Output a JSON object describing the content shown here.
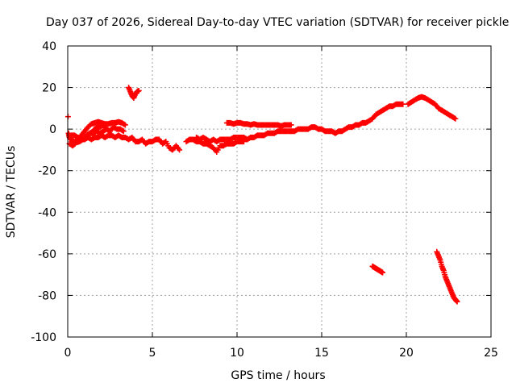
{
  "chart_data": {
    "type": "scatter",
    "title": "Day 037 of 2026, Sidereal Day-to-day VTEC variation (SDTVAR) for receiver pickle",
    "xlabel": "GPS time / hours",
    "ylabel": "SDTVAR / TECUs",
    "xlim": [
      0,
      25
    ],
    "ylim": [
      -100,
      40
    ],
    "xticks": [
      0,
      5,
      10,
      15,
      20,
      25
    ],
    "yticks": [
      -100,
      -80,
      -60,
      -40,
      -20,
      0,
      20,
      40
    ],
    "grid": true,
    "marker": "plus",
    "color": "#ff0000",
    "series": [
      {
        "values": [
          [
            0.02,
            6
          ],
          [
            0.05,
            -2
          ],
          [
            0.1,
            -4
          ],
          [
            0.2,
            -5
          ],
          [
            0.4,
            -6
          ],
          [
            0.6,
            -5
          ],
          [
            0.8,
            -3
          ],
          [
            1.0,
            -1
          ],
          [
            1.2,
            1
          ],
          [
            1.4,
            2.5
          ],
          [
            1.6,
            3
          ],
          [
            1.8,
            3.5
          ],
          [
            2.0,
            3
          ],
          [
            2.2,
            2.5
          ],
          [
            2.4,
            2.5
          ],
          [
            2.6,
            3
          ],
          [
            2.8,
            3
          ],
          [
            3.0,
            3.5
          ],
          [
            3.2,
            3
          ],
          [
            3.4,
            2
          ],
          [
            0.1,
            -7
          ],
          [
            0.3,
            -8
          ],
          [
            0.5,
            -6.5
          ],
          [
            0.7,
            -6
          ],
          [
            0.9,
            -5
          ],
          [
            1.1,
            -3
          ],
          [
            1.3,
            -2
          ],
          [
            1.5,
            -2
          ],
          [
            1.7,
            -1
          ],
          [
            1.9,
            -2
          ],
          [
            2.1,
            -1
          ],
          [
            2.3,
            0
          ],
          [
            2.5,
            -1
          ],
          [
            2.7,
            1
          ],
          [
            2.9,
            0
          ],
          [
            3.1,
            0
          ],
          [
            3.3,
            -1
          ],
          [
            0.2,
            -3
          ],
          [
            0.4,
            -3
          ],
          [
            0.6,
            -4
          ],
          [
            0.8,
            -5
          ],
          [
            1.0,
            -5
          ],
          [
            1.2,
            -4
          ],
          [
            1.4,
            -5
          ],
          [
            1.6,
            -4
          ],
          [
            1.8,
            -4
          ],
          [
            2.0,
            -3
          ],
          [
            2.2,
            -4
          ],
          [
            2.4,
            -3
          ],
          [
            2.6,
            -3
          ],
          [
            2.8,
            -4
          ],
          [
            3.0,
            -3
          ],
          [
            3.2,
            -4
          ],
          [
            3.4,
            -4
          ],
          [
            3.6,
            -5
          ],
          [
            3.8,
            -4
          ],
          [
            4.0,
            -6
          ],
          [
            4.2,
            -6
          ],
          [
            4.4,
            -5
          ],
          [
            4.6,
            -7
          ],
          [
            4.8,
            -6
          ],
          [
            5.0,
            -6
          ],
          [
            5.2,
            -5
          ],
          [
            5.4,
            -5
          ],
          [
            5.6,
            -7
          ],
          [
            5.8,
            -6
          ],
          [
            6.0,
            -9
          ],
          [
            6.2,
            -10
          ],
          [
            6.4,
            -8
          ],
          [
            6.6,
            -10
          ],
          [
            1.3,
            -2
          ],
          [
            1.5,
            -1
          ],
          [
            1.7,
            1
          ],
          [
            1.9,
            1
          ],
          [
            2.1,
            2
          ],
          [
            2.3,
            0
          ]
        ]
      },
      {
        "values": [
          [
            3.6,
            20
          ],
          [
            3.7,
            18
          ],
          [
            3.8,
            16
          ],
          [
            3.9,
            15
          ],
          [
            4.0,
            17
          ],
          [
            4.1,
            18
          ],
          [
            4.2,
            18.5
          ]
        ]
      },
      {
        "values": [
          [
            7.0,
            -6
          ],
          [
            7.2,
            -5
          ],
          [
            7.4,
            -5
          ],
          [
            7.6,
            -6
          ],
          [
            7.8,
            -6
          ],
          [
            8.0,
            -7
          ],
          [
            8.2,
            -7
          ],
          [
            8.4,
            -8
          ],
          [
            8.6,
            -9
          ],
          [
            8.8,
            -11
          ],
          [
            9.0,
            -8
          ],
          [
            9.2,
            -8
          ],
          [
            9.4,
            -7
          ],
          [
            9.6,
            -7
          ],
          [
            9.8,
            -7
          ],
          [
            10.0,
            -6
          ],
          [
            10.2,
            -6
          ],
          [
            10.4,
            -6
          ],
          [
            7.6,
            -4
          ],
          [
            7.8,
            -5
          ],
          [
            8.0,
            -4
          ],
          [
            8.2,
            -5
          ],
          [
            8.4,
            -6
          ],
          [
            8.6,
            -5
          ],
          [
            8.8,
            -6
          ],
          [
            9.0,
            -5
          ],
          [
            9.2,
            -5
          ],
          [
            9.4,
            -5
          ],
          [
            9.6,
            -5
          ],
          [
            9.8,
            -4
          ],
          [
            10.0,
            -4
          ],
          [
            10.2,
            -4
          ],
          [
            10.4,
            -4
          ],
          [
            10.6,
            -5
          ],
          [
            10.8,
            -4
          ],
          [
            11.0,
            -4
          ],
          [
            11.2,
            -3
          ],
          [
            11.4,
            -3
          ],
          [
            11.6,
            -3
          ],
          [
            11.8,
            -2
          ],
          [
            12.0,
            -2
          ],
          [
            12.2,
            -2
          ],
          [
            12.4,
            -1
          ],
          [
            12.6,
            -1
          ],
          [
            12.8,
            -1
          ],
          [
            13.0,
            -1
          ],
          [
            13.2,
            -1
          ],
          [
            13.4,
            -1
          ],
          [
            13.6,
            0
          ],
          [
            13.8,
            0
          ],
          [
            14.0,
            0
          ],
          [
            14.2,
            0
          ],
          [
            14.4,
            1
          ],
          [
            14.6,
            1
          ],
          [
            14.8,
            0
          ],
          [
            15.0,
            0
          ],
          [
            15.2,
            -1
          ],
          [
            15.4,
            -1
          ],
          [
            15.6,
            -1
          ],
          [
            15.8,
            -2
          ],
          [
            16.0,
            -1
          ],
          [
            16.2,
            -1
          ],
          [
            16.4,
            0
          ],
          [
            16.6,
            1
          ],
          [
            16.8,
            1
          ],
          [
            17.0,
            2
          ],
          [
            17.2,
            2
          ],
          [
            17.4,
            3
          ],
          [
            17.6,
            3
          ],
          [
            17.8,
            4
          ],
          [
            18.0,
            5
          ],
          [
            18.2,
            7
          ],
          [
            18.4,
            8
          ],
          [
            18.6,
            9
          ],
          [
            18.8,
            10
          ],
          [
            19.0,
            11
          ],
          [
            19.2,
            11
          ],
          [
            19.4,
            12
          ],
          [
            19.6,
            12
          ],
          [
            19.8,
            12
          ]
        ]
      },
      {
        "values": [
          [
            9.4,
            3
          ],
          [
            9.6,
            3
          ],
          [
            9.8,
            2.5
          ],
          [
            10.0,
            3
          ],
          [
            10.2,
            3
          ],
          [
            10.4,
            2.5
          ],
          [
            10.6,
            2.5
          ],
          [
            10.8,
            2
          ],
          [
            11.0,
            2.5
          ],
          [
            11.2,
            2
          ],
          [
            11.4,
            2
          ],
          [
            11.6,
            2
          ],
          [
            11.8,
            2
          ],
          [
            12.0,
            2
          ],
          [
            12.2,
            2
          ],
          [
            12.4,
            2
          ],
          [
            12.6,
            1.5
          ],
          [
            12.8,
            2
          ],
          [
            13.0,
            2
          ],
          [
            13.2,
            2
          ]
        ]
      },
      {
        "values": [
          [
            20.1,
            12
          ],
          [
            20.3,
            13
          ],
          [
            20.5,
            14
          ],
          [
            20.7,
            15
          ],
          [
            20.9,
            15.5
          ],
          [
            21.1,
            15
          ],
          [
            21.3,
            14
          ],
          [
            21.5,
            13
          ],
          [
            21.7,
            12
          ],
          [
            21.9,
            10
          ],
          [
            22.1,
            9
          ],
          [
            22.3,
            8
          ],
          [
            22.5,
            7
          ],
          [
            22.7,
            6
          ],
          [
            22.9,
            5
          ]
        ]
      },
      {
        "values": [
          [
            18.0,
            -66
          ],
          [
            18.1,
            -66.5
          ],
          [
            18.2,
            -67
          ],
          [
            18.3,
            -67.5
          ],
          [
            18.4,
            -68
          ],
          [
            18.5,
            -68.5
          ],
          [
            18.6,
            -69
          ]
        ]
      },
      {
        "values": [
          [
            21.8,
            -59
          ],
          [
            21.9,
            -61
          ],
          [
            22.0,
            -63
          ],
          [
            22.1,
            -66
          ],
          [
            22.2,
            -68
          ],
          [
            22.3,
            -71
          ],
          [
            22.4,
            -73
          ],
          [
            22.5,
            -75
          ],
          [
            22.6,
            -77
          ],
          [
            22.7,
            -79
          ],
          [
            22.8,
            -81
          ],
          [
            22.9,
            -82
          ],
          [
            23.0,
            -83
          ]
        ]
      }
    ]
  }
}
